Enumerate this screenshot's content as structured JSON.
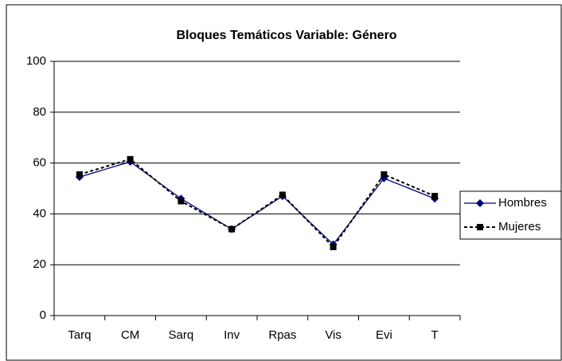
{
  "chart_data": {
    "type": "line",
    "title": "Bloques Temáticos  Variable: Género",
    "categories": [
      "Tarq",
      "CM",
      "Sarq",
      "Inv",
      "Rpas",
      "Vis",
      "Evi",
      "T"
    ],
    "series": [
      {
        "name": "Hombres",
        "color": "#000080",
        "values": [
          54.5,
          60.5,
          46,
          34,
          47,
          28,
          54,
          46
        ]
      },
      {
        "name": "Mujeres",
        "color": "#000000",
        "values": [
          55.5,
          61.5,
          45,
          34,
          47.5,
          27,
          55.5,
          47
        ]
      }
    ],
    "ylim": [
      0,
      100
    ],
    "yticks": [
      0,
      20,
      40,
      60,
      80,
      100
    ],
    "grid": true,
    "legend": "right"
  }
}
